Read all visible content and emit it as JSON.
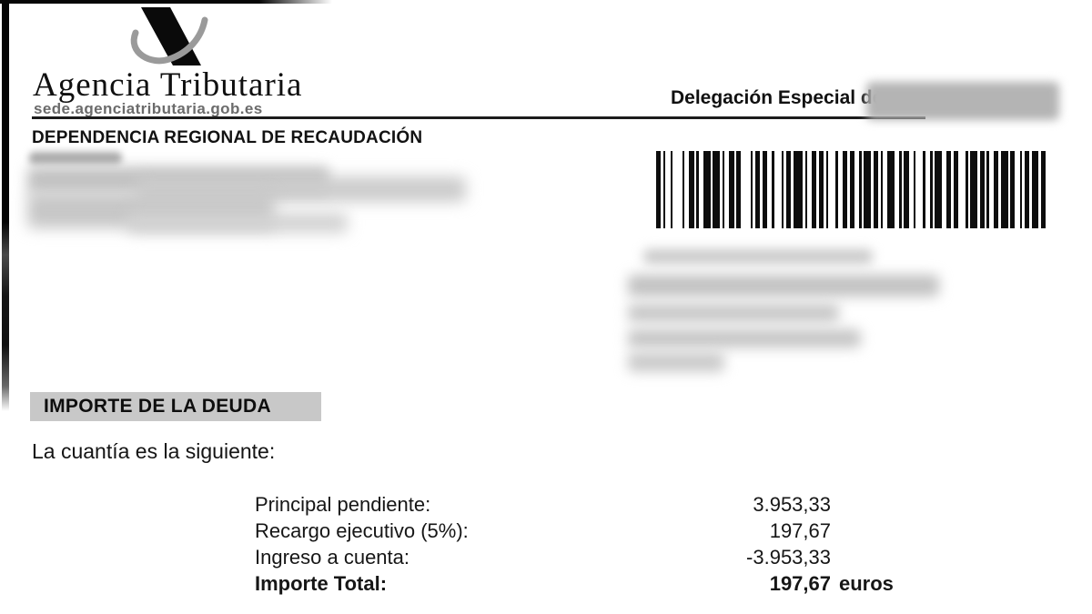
{
  "header": {
    "brand": "Agencia Tributaria",
    "sede_url": "sede.agenciatributaria.gob.es",
    "delegation_label": "Delegación Especial de",
    "department": "DEPENDENCIA REGIONAL DE RECAUDACIÓN"
  },
  "barcode": {
    "pattern": "21121412211231311221241121221311214112212113122122113121123211221312113221231131211221312211213122123"
  },
  "debt": {
    "section_title": "IMPORTE DE LA DEUDA",
    "intro": "La cuantía es la siguiente:",
    "rows": [
      {
        "label": "Principal pendiente:",
        "value": "3.953,33",
        "unit": ""
      },
      {
        "label": "Recargo ejecutivo (5%):",
        "value": "197,67",
        "unit": ""
      },
      {
        "label": "Ingreso a cuenta:",
        "value": "-3.953,33",
        "unit": ""
      },
      {
        "label": "Importe Total:",
        "value": "197,67",
        "unit": "euros"
      }
    ]
  },
  "colors": {
    "section_bg": "#c8c8c8",
    "rule": "#1b1b1b",
    "muted_gray": "#6b6b6b",
    "logo_swoosh": "#9a9a9a",
    "ink": "#161616"
  }
}
